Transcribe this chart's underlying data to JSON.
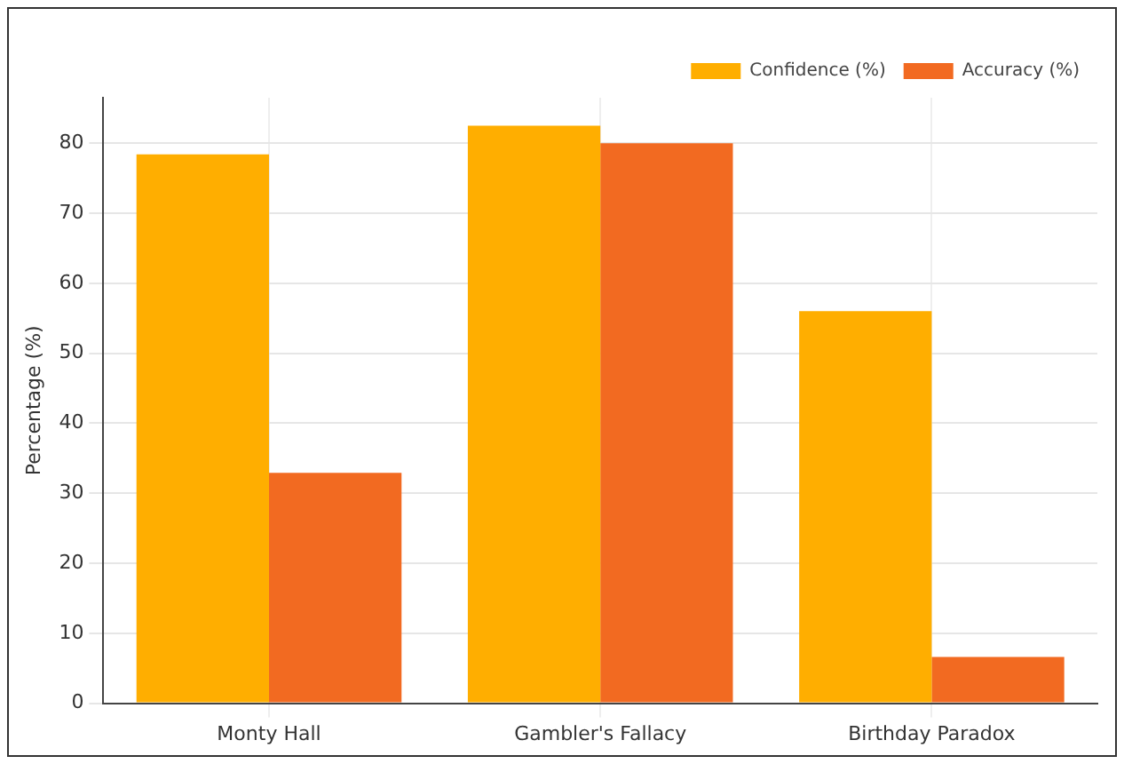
{
  "chart_data": {
    "type": "bar",
    "ylabel": "Percentage (%)",
    "categories": [
      "Monty Hall",
      "Gambler's Fallacy",
      "Birthday Paradox"
    ],
    "series": [
      {
        "name": "Confidence (%)",
        "color": "#ffae00",
        "values": [
          78.4,
          82.5,
          56
        ]
      },
      {
        "name": "Accuracy (%)",
        "color": "#f26a21",
        "values": [
          32.9,
          80,
          6.6
        ]
      }
    ],
    "ylim": [
      0,
      86.5
    ],
    "yticks": [
      0,
      10,
      20,
      30,
      40,
      50,
      60,
      70,
      80
    ],
    "grid": true,
    "legend": "top right"
  }
}
